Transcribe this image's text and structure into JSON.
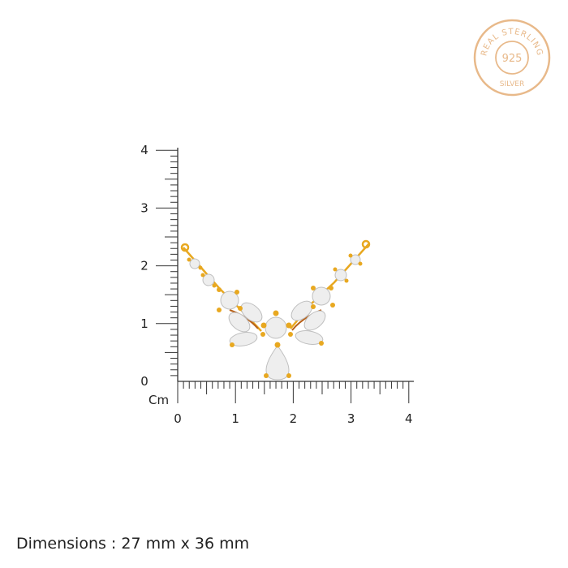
{
  "seal": {
    "top_text": "REAL STERLING",
    "center_text": "925",
    "bottom_text": "SILVER",
    "color": "#e8b98a"
  },
  "ruler": {
    "unit_label": "Cm",
    "x_ticks": [
      "0",
      "1",
      "2",
      "3",
      "4"
    ],
    "y_ticks": [
      "0",
      "1",
      "2",
      "3",
      "4"
    ],
    "range_cm": [
      0,
      4
    ],
    "minor_step_cm": 0.1,
    "color": "#333333"
  },
  "product": {
    "metal_color": "#e8a820",
    "stone_color": "#f2f2f2"
  },
  "dimensions": "Dimensions : 27 mm x 36 mm"
}
